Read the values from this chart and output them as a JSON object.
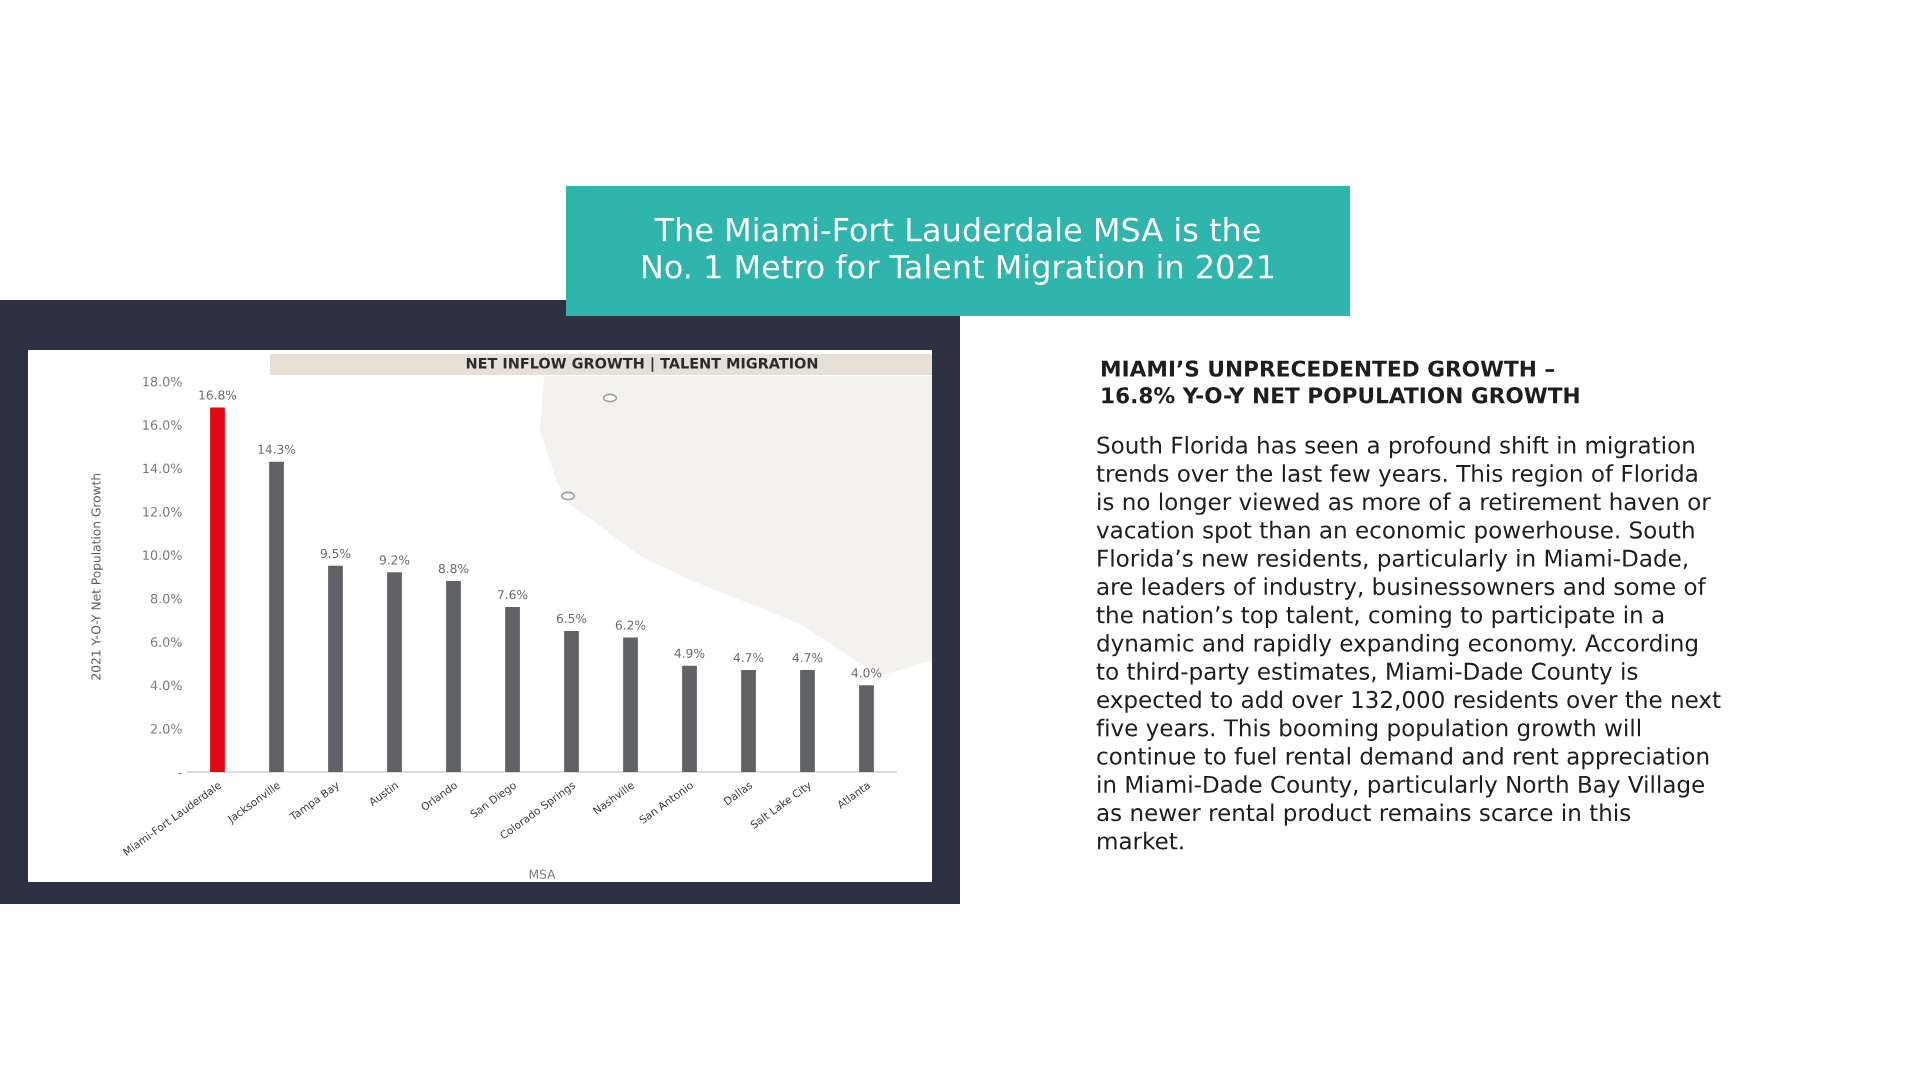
{
  "chart_data": {
    "type": "bar",
    "title": "The Miami-Fort Lauderdale MSA is the No. 1 Metro for Talent Migration in 2021",
    "subtitle": "NET INFLOW GROWTH | TALENT MIGRATION",
    "xlabel": "MSA",
    "ylabel": "2021 Y-O-Y Net Population Growth",
    "categories": [
      "Miami-Fort Lauderdale",
      "Jacksonville",
      "Tampa Bay",
      "Austin",
      "Orlando",
      "San Diego",
      "Colorado Springs",
      "Nashville",
      "San Antonio",
      "Dallas",
      "Salt Lake City",
      "Atlanta"
    ],
    "values": [
      16.8,
      14.3,
      9.5,
      9.2,
      8.8,
      7.6,
      6.5,
      6.2,
      4.9,
      4.7,
      4.7,
      4.0
    ],
    "colors": [
      "#e30613",
      "#606266",
      "#606266",
      "#606266",
      "#606266",
      "#606266",
      "#606266",
      "#606266",
      "#606266",
      "#606266",
      "#606266",
      "#606266"
    ],
    "value_labels": [
      "16.8%",
      "14.3%",
      "9.5%",
      "9.2%",
      "8.8%",
      "7.6%",
      "6.5%",
      "6.2%",
      "4.9%",
      "4.7%",
      "4.7%",
      "4.0%"
    ],
    "ylim": [
      0,
      18
    ],
    "yticks": [
      {
        "value": 0,
        "label": "-"
      },
      {
        "value": 2,
        "label": "2.0%"
      },
      {
        "value": 4,
        "label": "4.0%"
      },
      {
        "value": 6,
        "label": "6.0%"
      },
      {
        "value": 8,
        "label": "8.0%"
      },
      {
        "value": 10,
        "label": "10.0%"
      },
      {
        "value": 12,
        "label": "12.0%"
      },
      {
        "value": 14,
        "label": "14.0%"
      },
      {
        "value": 16,
        "label": "16.0%"
      },
      {
        "value": 18,
        "label": "18.0%"
      }
    ],
    "grid": false,
    "annotations": [
      "MIAMI’S UNPRECEDENTED GROWTH –\n16.8% Y-O-Y NET POPULATION GROWTH",
      "South Florida has seen a profound shift in migration trends over the last few years. This region of Florida is no longer viewed as more of a retirement haven or vacation spot than an economic powerhouse. South Florida’s new residents, particularly in Miami-Dade, are leaders of industry, businessowners and some of the nation’s top talent, coming to participate in a dynamic and rapidly expanding economy. According to third-party estimates, Miami-Dade County is expected to add over 132,000 residents over the next five years. This booming population growth will continue to fuel rental demand and rent appreciation in Miami-Dade County, particularly North Bay Village as newer rental product remains scarce in this market."
    ]
  }
}
